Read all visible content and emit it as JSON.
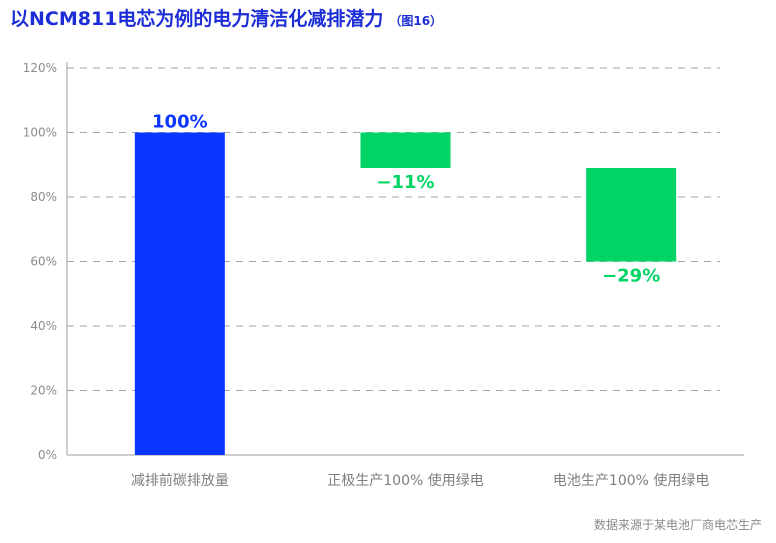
{
  "title": "以NCM811电芯为例的电力清洁化减排潜力",
  "subtitle": "（图16）",
  "source_note": "数据来源于某电池厂商电芯生产",
  "colors": {
    "title": "#1d2ed6",
    "baseline_bar": "#0a36ff",
    "reduction_bar": "#00d464",
    "grid": "#a6a6a6",
    "axis": "#9e9e9e"
  },
  "chart_data": {
    "type": "bar",
    "subtype": "waterfall",
    "categories": [
      "减排前碳排放量",
      "正极生产100% 使用绿电",
      "电池生产100% 使用绿电"
    ],
    "bars": [
      {
        "category": "减排前碳排放量",
        "bottom": 0,
        "top": 100,
        "label": "100%",
        "kind": "baseline"
      },
      {
        "category": "正极生产100% 使用绿电",
        "bottom": 89,
        "top": 100,
        "label": "−11%",
        "kind": "reduction"
      },
      {
        "category": "电池生产100% 使用绿电",
        "bottom": 60,
        "top": 89,
        "label": "−29%",
        "kind": "reduction"
      }
    ],
    "ylim": [
      0,
      120
    ],
    "yticks": [
      0,
      20,
      40,
      60,
      80,
      100,
      120
    ],
    "ytick_labels": [
      "0%",
      "20%",
      "40%",
      "60%",
      "80%",
      "100%",
      "120%"
    ],
    "grid": true,
    "xlabel": "",
    "ylabel": ""
  }
}
